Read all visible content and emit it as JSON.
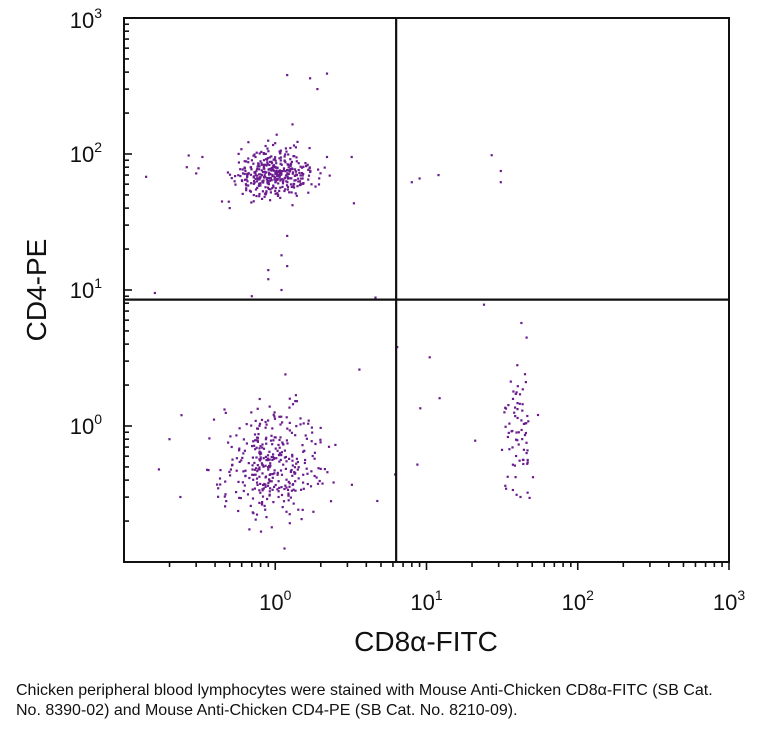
{
  "chart_data": {
    "type": "scatter",
    "title": "",
    "xlabel": "CD8α-FITC",
    "ylabel": "CD4-PE",
    "x_scale": "log",
    "y_scale": "log",
    "xlim": [
      0.1,
      1000
    ],
    "ylim": [
      0.1,
      1000
    ],
    "x_ticks": [
      {
        "base": "10",
        "exp": "0"
      },
      {
        "base": "10",
        "exp": "1"
      },
      {
        "base": "10",
        "exp": "2"
      },
      {
        "base": "10",
        "exp": "3"
      }
    ],
    "y_ticks": [
      {
        "base": "10",
        "exp": "0"
      },
      {
        "base": "10",
        "exp": "1"
      },
      {
        "base": "10",
        "exp": "2"
      },
      {
        "base": "10",
        "exp": "3"
      }
    ],
    "quadrant_gates": {
      "x": 6.3,
      "y": 8.5
    },
    "dot_color": "#6a1b8e",
    "axis_color": "#111111",
    "grid": false,
    "populations": [
      {
        "center": [
          1.0,
          72
        ],
        "spread": [
          0.14,
          0.09
        ],
        "count": 380,
        "seed": 11
      },
      {
        "center": [
          0.95,
          0.55
        ],
        "spread": [
          0.17,
          0.22
        ],
        "count": 360,
        "seed": 23
      },
      {
        "center": [
          40,
          1.0
        ],
        "spread": [
          0.05,
          0.28
        ],
        "count": 75,
        "seed": 37
      }
    ],
    "points": [
      [
        0.14,
        68
      ],
      [
        0.3,
        72
      ],
      [
        0.26,
        80
      ],
      [
        0.33,
        95
      ],
      [
        0.5,
        40
      ],
      [
        1.2,
        380
      ],
      [
        1.7,
        360
      ],
      [
        2.2,
        390
      ],
      [
        1.9,
        300
      ],
      [
        1.3,
        165
      ],
      [
        2.2,
        95
      ],
      [
        3.2,
        95
      ],
      [
        1.3,
        42
      ],
      [
        1.2,
        25
      ],
      [
        1.1,
        18
      ],
      [
        1.2,
        15
      ],
      [
        0.9,
        14
      ],
      [
        0.9,
        12
      ],
      [
        1.1,
        10
      ],
      [
        0.7,
        9
      ],
      [
        0.16,
        9.5
      ],
      [
        4.6,
        8.8
      ],
      [
        8,
        62
      ],
      [
        9,
        66
      ],
      [
        12,
        70
      ],
      [
        27,
        98
      ],
      [
        31,
        75
      ],
      [
        31,
        62
      ],
      [
        6.4,
        3.8
      ],
      [
        10.5,
        3.2
      ],
      [
        12.2,
        1.6
      ],
      [
        9.1,
        1.35
      ],
      [
        8.7,
        0.52
      ],
      [
        21,
        0.78
      ],
      [
        24,
        7.8
      ],
      [
        3.6,
        2.6
      ],
      [
        6.2,
        0.44
      ],
      [
        0.2,
        0.8
      ],
      [
        0.17,
        0.48
      ],
      [
        0.24,
        1.2
      ]
    ]
  },
  "caption": "Chicken peripheral blood lymphocytes were stained with Mouse Anti-Chicken CD8α-FITC (SB Cat. No. 8390-02) and Mouse Anti-Chicken CD4-PE (SB Cat. No. 8210-09)."
}
